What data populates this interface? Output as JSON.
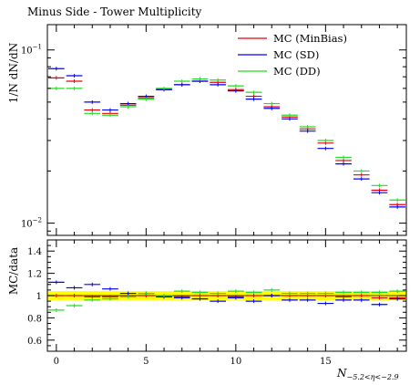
{
  "chart_data": [
    {
      "type": "line",
      "title": "Minus Side - Tower Multiplicity",
      "ylabel": "1/N dN/dN",
      "yscale": "log",
      "ylim": [
        0.0085,
        0.14
      ],
      "xlim": [
        -0.5,
        19.5
      ],
      "y_tick_labels": [
        "10",
        "10"
      ],
      "y_tick_exponents": [
        "−1",
        "−2"
      ],
      "legend_position": "top-right",
      "series": [
        {
          "name": "MC (MinBias)",
          "color": "#e8000b",
          "x": [
            0,
            1,
            2,
            3,
            4,
            5,
            6,
            7,
            8,
            9,
            10,
            11,
            12,
            13,
            14,
            15,
            16,
            17,
            18,
            19
          ],
          "values": [
            0.069,
            0.066,
            0.045,
            0.043,
            0.048,
            0.053,
            0.059,
            0.063,
            0.066,
            0.065,
            0.059,
            0.054,
            0.047,
            0.041,
            0.035,
            0.029,
            0.023,
            0.019,
            0.0155,
            0.0128
          ]
        },
        {
          "name": "MC (SD)",
          "color": "#0000ff",
          "x": [
            0,
            1,
            2,
            3,
            4,
            5,
            6,
            7,
            8,
            9,
            10,
            11,
            12,
            13,
            14,
            15,
            16,
            17,
            18,
            19
          ],
          "values": [
            0.078,
            0.071,
            0.05,
            0.045,
            0.049,
            0.054,
            0.059,
            0.063,
            0.066,
            0.063,
            0.058,
            0.052,
            0.046,
            0.04,
            0.034,
            0.027,
            0.022,
            0.018,
            0.015,
            0.0124
          ]
        },
        {
          "name": "MC (DD)",
          "color": "#22dd22",
          "x": [
            0,
            1,
            2,
            3,
            4,
            5,
            6,
            7,
            8,
            9,
            10,
            11,
            12,
            13,
            14,
            15,
            16,
            17,
            18,
            19
          ],
          "values": [
            0.06,
            0.06,
            0.043,
            0.042,
            0.047,
            0.052,
            0.06,
            0.066,
            0.068,
            0.067,
            0.062,
            0.057,
            0.049,
            0.042,
            0.036,
            0.03,
            0.024,
            0.02,
            0.0165,
            0.0136
          ]
        }
      ]
    },
    {
      "type": "line",
      "ylabel": "MC/data",
      "xlabel": "N",
      "xlabel_subscript": "−5.2<η<−2.9",
      "xlim": [
        -0.5,
        19.5
      ],
      "ylim": [
        0.5,
        1.5
      ],
      "x_ticks": [
        0,
        5,
        10,
        15
      ],
      "y_ticks": [
        0.6,
        0.8,
        1,
        1.2,
        1.4
      ],
      "band": {
        "lower": 0.96,
        "upper": 1.04,
        "color": "#ffff00"
      },
      "series": [
        {
          "name": "MC (MinBias)",
          "color": "#e8000b",
          "x": [
            0,
            1,
            2,
            3,
            4,
            5,
            6,
            7,
            8,
            9,
            10,
            11,
            12,
            13,
            14,
            15,
            16,
            17,
            18,
            19
          ],
          "values": [
            1.0,
            1.0,
            0.99,
            0.99,
            1.0,
            1.0,
            0.99,
            0.99,
            1.0,
            1.0,
            0.99,
            1.0,
            1.0,
            1.0,
            1.0,
            1.0,
            0.99,
            1.0,
            0.98,
            0.98
          ]
        },
        {
          "name": "MC (SD)",
          "color": "#0000ff",
          "x": [
            0,
            1,
            2,
            3,
            4,
            5,
            6,
            7,
            8,
            9,
            10,
            11,
            12,
            13,
            14,
            15,
            16,
            17,
            18,
            19
          ],
          "values": [
            1.12,
            1.07,
            1.1,
            1.06,
            1.02,
            1.02,
            0.99,
            0.98,
            0.97,
            0.95,
            0.98,
            0.95,
            1.0,
            0.96,
            0.96,
            0.93,
            0.96,
            0.96,
            0.92,
            0.97
          ]
        },
        {
          "name": "MC (DD)",
          "color": "#22dd22",
          "x": [
            0,
            1,
            2,
            3,
            4,
            5,
            6,
            7,
            8,
            9,
            10,
            11,
            12,
            13,
            14,
            15,
            16,
            17,
            18,
            19
          ],
          "values": [
            0.87,
            0.91,
            0.96,
            0.97,
            0.99,
            1.02,
            1.0,
            1.04,
            1.03,
            1.02,
            1.04,
            1.03,
            1.05,
            1.02,
            1.02,
            1.02,
            1.03,
            1.03,
            1.03,
            1.04
          ]
        }
      ]
    }
  ]
}
